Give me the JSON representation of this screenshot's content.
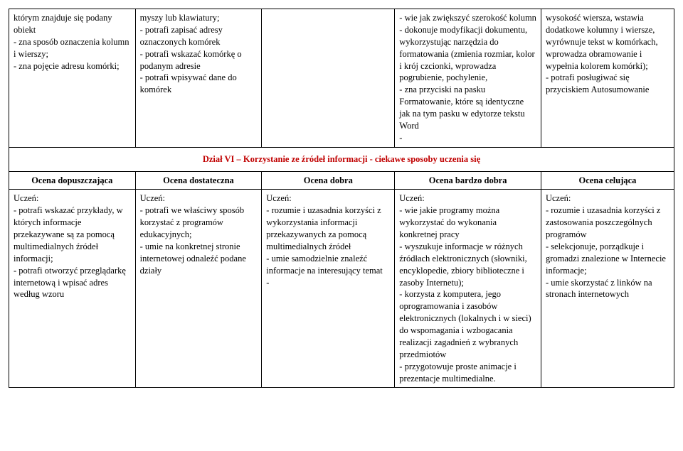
{
  "row1": {
    "c1": "którym znajduje się podany obiekt\n- zna sposób oznaczenia kolumn i wierszy;\n- zna pojęcie adresu komórki;",
    "c2": "myszy lub klawiatury;\n- potrafi zapisać adresy oznaczonych komórek\n- potrafi wskazać komórkę o podanym adresie\n- potrafi wpisywać dane do komórek",
    "c3": "",
    "c4": "- wie jak zwiększyć szerokość kolumn\n- dokonuje modyfikacji dokumentu, wykorzystując narzędzia do formatowania (zmienia rozmiar, kolor i krój czcionki, wprowadza pogrubienie, pochylenie,\n- zna przyciski na pasku Formatowanie, które są identyczne jak na tym pasku w edytorze tekstu Word\n-",
    "c5": "wysokość wiersza, wstawia dodatkowe kolumny i wiersze, wyrównuje tekst w komórkach, wprowadza obramowanie i wypełnia kolorem komórki);\n- potrafi posługiwać się przyciskiem Autosumowanie"
  },
  "sectionTitle": "Dział VI – Korzystanie ze źródeł informacji - ciekawe sposoby uczenia się",
  "headers": {
    "h1": "Ocena dopuszczająca",
    "h2": "Ocena dostateczna",
    "h3": "Ocena dobra",
    "h4": "Ocena bardzo dobra",
    "h5": "Ocena celująca"
  },
  "row2": {
    "c1": "Uczeń:\n- potrafi wskazać przykłady, w których informacje przekazywane są za pomocą multimedialnych źródeł informacji;\n- potrafi otworzyć przeglądarkę internetową i wpisać adres według wzoru",
    "c2": "Uczeń:\n- potrafi we właściwy sposób korzystać z programów edukacyjnych;\n- umie na konkretnej stronie internetowej odnaleźć podane działy",
    "c3": "Uczeń:\n- rozumie i uzasadnia korzyści z wykorzystania informacji przekazywanych za pomocą multimedialnych źródeł\n- umie samodzielnie znaleźć informacje na interesujący temat\n-",
    "c4": "Uczeń:\n- wie jakie programy można wykorzystać do wykonania konkretnej pracy\n- wyszukuje informacje w różnych źródłach elektronicznych (słowniki, encyklopedie, zbiory biblioteczne i zasoby Internetu);\n- korzysta z komputera, jego oprogramowania i zasobów elektronicznych (lokalnych i w sieci) do wspomagania i wzbogacania realizacji zagadnień z wybranych przedmiotów\n- przygotowuje proste animacje i prezentacje multimedialne.",
    "c5": "Uczeń:\n- rozumie i uzasadnia korzyści z zastosowania poszczególnych programów\n- selekcjonuje, porządkuje i gromadzi znalezione w Internecie informacje;\n- umie skorzystać z linków na stronach internetowych"
  }
}
